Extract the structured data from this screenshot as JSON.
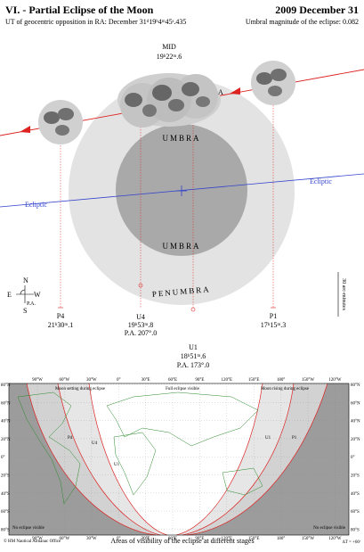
{
  "header": {
    "title": "VI. - Partial Eclipse of the Moon",
    "date": "2009 December 31",
    "opposition": "UT of geocentric opposition in RA: December 31ᵈ19ʰ4ᵐ45ˢ.435",
    "magnitude": "Umbral magnitude of the eclipse: 0.082"
  },
  "diagram": {
    "mid_label": "MID",
    "mid_time": "19ʰ22ᵐ.6",
    "a_label": "A",
    "umbra_top": "UMBRA",
    "umbra_bottom": "UMBRA",
    "penumbra": "PENUMBRA",
    "ecliptic_left": "Ecliptic",
    "ecliptic_right": "Ecliptic",
    "scale": "30 arc-minutes",
    "compass": {
      "n": "N",
      "s": "S",
      "e": "E",
      "w": "W",
      "pa": "P.A."
    },
    "contacts": [
      {
        "label": "P4",
        "time": "21ʰ30ᵐ.1"
      },
      {
        "label": "U4",
        "time": "19ʰ53ᵐ.8",
        "pa": "P.A. 207°.0"
      },
      {
        "label": "U1",
        "time": "18ʰ51ᵐ.6",
        "pa": "P.A. 173°.0"
      },
      {
        "label": "P1",
        "time": "17ʰ15ᵐ.3"
      }
    ]
  },
  "map": {
    "longitudes": [
      "90°W",
      "60°W",
      "30°W",
      "0°",
      "30°E",
      "60°E",
      "90°E",
      "120°E",
      "150°E",
      "180°",
      "150°W",
      "120°W"
    ],
    "latitudes": [
      "80°N",
      "60°N",
      "40°N",
      "20°N",
      "0°",
      "20°S",
      "40°S",
      "60°S",
      "80°S"
    ],
    "setting": "Moon setting during eclipse",
    "full": "Full eclipse visible",
    "rising": "Moon rising during eclipse",
    "none_left": "No eclipse visible",
    "none_right": "No eclipse visible",
    "zone_labels": [
      "P4",
      "U4",
      "U1",
      "U1",
      "P1"
    ]
  },
  "footer": {
    "copyright": "© HM Nautical Almanac Office",
    "caption": "Areas of visibility of the eclipse at different stages",
    "delta_t": "ΔT = +66ˢ"
  }
}
